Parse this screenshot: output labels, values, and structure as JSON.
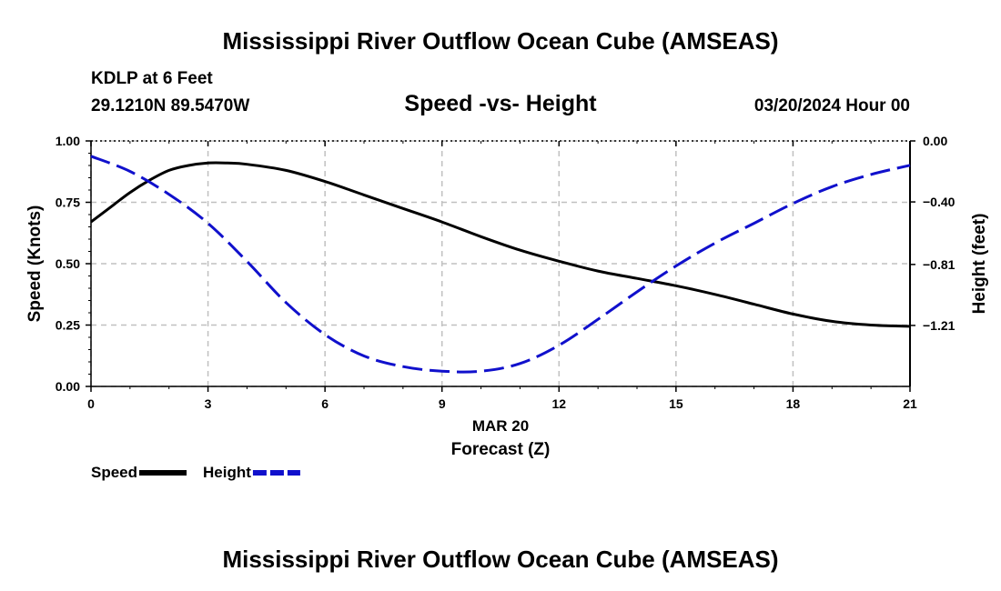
{
  "header": {
    "title_top": "Mississippi River Outflow Ocean Cube (AMSEAS)",
    "title_bottom": "Mississippi River Outflow Ocean Cube (AMSEAS)",
    "station": "KDLP at 6 Feet",
    "coords": "29.1210N  89.5470W",
    "date_label": "03/20/2024 Hour 00"
  },
  "chart_data": {
    "type": "line",
    "title": "Speed -vs- Height",
    "xlabel": "Forecast (Z)",
    "xlabel_date": "MAR 20",
    "ylabel": "Speed (Knots)",
    "ylabel_right": "Height (feet)",
    "x_ticks": [
      "0",
      "3",
      "6",
      "9",
      "12",
      "15",
      "18",
      "21"
    ],
    "y_ticks": [
      "0.00",
      "0.25",
      "0.50",
      "0.75",
      "1.00"
    ],
    "y_right_ticks": [
      "-1.21",
      "-0.81",
      "-0.40",
      "0.00"
    ],
    "xlim": [
      0,
      21
    ],
    "ylim": [
      0,
      1
    ],
    "y_right_lim": [
      -1.61,
      0
    ],
    "grid": true,
    "series": [
      {
        "name": "Speed",
        "axis": "left",
        "color": "#000000",
        "dash": "solid",
        "x": [
          0,
          0.5,
          1,
          1.5,
          2,
          2.5,
          3,
          3.5,
          4,
          5,
          6,
          7,
          8,
          9,
          10,
          11,
          12,
          13,
          14,
          15,
          16,
          17,
          18,
          19,
          20,
          21
        ],
        "values": [
          0.67,
          0.73,
          0.79,
          0.84,
          0.88,
          0.9,
          0.91,
          0.91,
          0.905,
          0.88,
          0.835,
          0.78,
          0.725,
          0.67,
          0.61,
          0.555,
          0.51,
          0.47,
          0.44,
          0.41,
          0.375,
          0.335,
          0.295,
          0.265,
          0.25,
          0.245
        ]
      },
      {
        "name": "Height",
        "axis": "right",
        "color": "#1010cc",
        "dash": "dashed",
        "x": [
          0,
          1,
          2,
          3,
          4,
          5,
          6,
          7,
          8,
          9,
          10,
          11,
          12,
          13,
          14,
          15,
          16,
          17,
          18,
          19,
          20,
          21
        ],
        "values": [
          -0.1,
          -0.2,
          -0.35,
          -0.54,
          -0.79,
          -1.06,
          -1.27,
          -1.41,
          -1.48,
          -1.51,
          -1.51,
          -1.46,
          -1.34,
          -1.17,
          -0.99,
          -0.82,
          -0.67,
          -0.54,
          -0.41,
          -0.3,
          -0.22,
          -0.16
        ]
      }
    ],
    "legend": [
      {
        "label": "Speed",
        "color": "#000000",
        "dash": "solid"
      },
      {
        "label": "Height",
        "color": "#1010cc",
        "dash": "dashed"
      }
    ],
    "legend_position": "bottom-left"
  }
}
